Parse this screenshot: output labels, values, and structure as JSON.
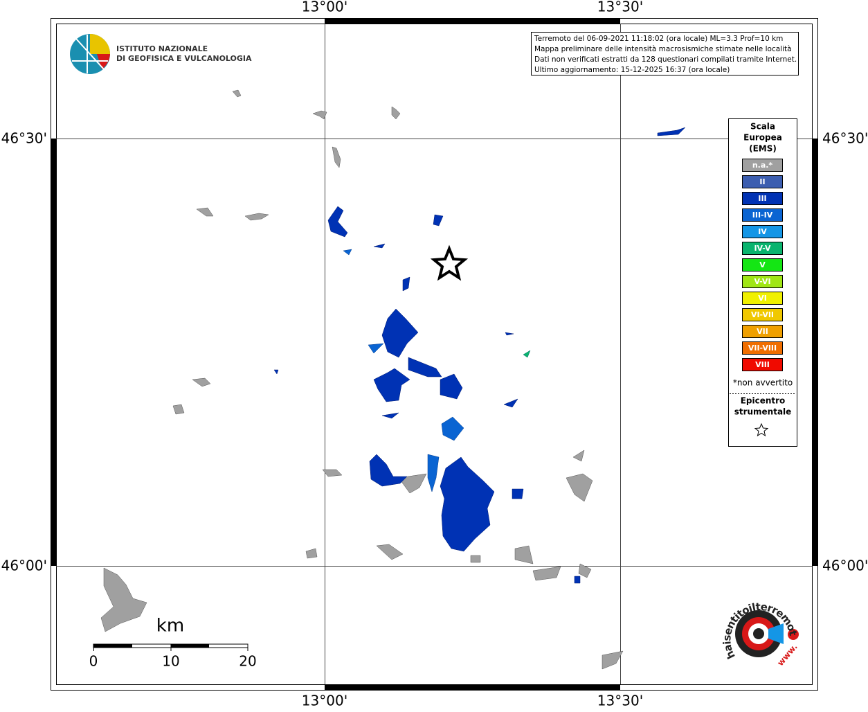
{
  "map": {
    "lon_labels": [
      "13°00'",
      "13°30'"
    ],
    "lat_labels": [
      "46°30'",
      "46°00'"
    ],
    "info_box": {
      "lines": [
        "Terremoto del 06-09-2021 11:18:02 (ora locale) ML=3.3 Prof=10 km",
        "Mappa preliminare delle intensità macrosismiche stimate nelle località",
        "Dati non verificati estratti da 128 questionari compilati tramite Internet.",
        "Ultimo aggiornamento: 15-12-2025 16:37 (ora locale)"
      ]
    },
    "logo": {
      "lines": [
        "ISTITUTO NAZIONALE",
        "DI GEOFISICA E VULCANOLOGIA"
      ]
    },
    "legend": {
      "title": [
        "Scala",
        "Europea",
        "(EMS)"
      ],
      "items": [
        {
          "label": "n.a.*",
          "color": "#a0a0a0"
        },
        {
          "label": "II",
          "color": "#3c5eb0"
        },
        {
          "label": "III",
          "color": "#0032b4"
        },
        {
          "label": "III-IV",
          "color": "#0a64d2"
        },
        {
          "label": "IV",
          "color": "#1496e6"
        },
        {
          "label": "IV-V",
          "color": "#0ab46e"
        },
        {
          "label": "V",
          "color": "#14e614"
        },
        {
          "label": "V-VI",
          "color": "#a0e614"
        },
        {
          "label": "VI",
          "color": "#f0f000"
        },
        {
          "label": "VI-VII",
          "color": "#f0c800"
        },
        {
          "label": "VII",
          "color": "#f0a000"
        },
        {
          "label": "VII-VIII",
          "color": "#f06e00"
        },
        {
          "label": "VIII",
          "color": "#f00a00"
        }
      ],
      "note": "*non avvertito",
      "epicenter": [
        "Epicentro",
        "strumentale"
      ]
    },
    "scale": {
      "unit": "km",
      "ticks": [
        0,
        10,
        20
      ]
    },
    "site_logo": {
      "name": "haisentitoilterremoto.it",
      "prefix": "www."
    }
  }
}
